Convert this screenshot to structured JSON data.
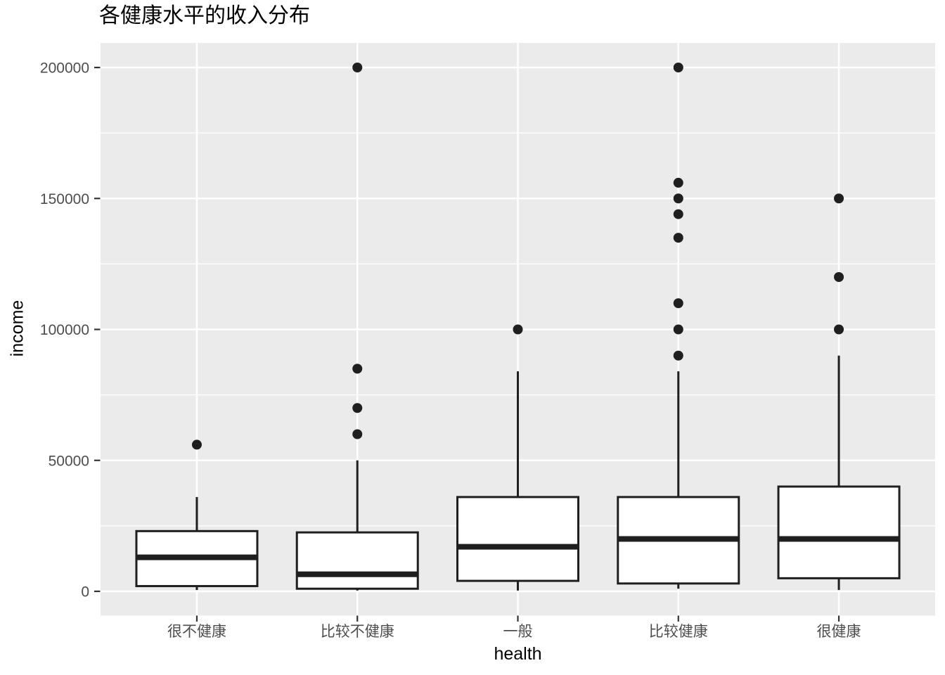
{
  "chart_data": {
    "type": "boxplot",
    "title": "各健康水平的收入分布",
    "xlabel": "health",
    "ylabel": "income",
    "categories": [
      "很不健康",
      "比较不健康",
      "一般",
      "比较健康",
      "很健康"
    ],
    "y_ticks": [
      0,
      50000,
      100000,
      150000,
      200000
    ],
    "y_ticks_minor": [
      25000,
      75000,
      125000,
      175000
    ],
    "ylim": [
      0,
      200000
    ],
    "grid": true,
    "legend": "none",
    "series": [
      {
        "category": "很不健康",
        "whisker_low": 500,
        "q1": 2000,
        "median": 13000,
        "q3": 23000,
        "whisker_high": 36000,
        "outliers": [
          56000
        ]
      },
      {
        "category": "比较不健康",
        "whisker_low": 300,
        "q1": 1000,
        "median": 6500,
        "q3": 22500,
        "whisker_high": 50000,
        "outliers": [
          60000,
          70000,
          85000,
          200000
        ]
      },
      {
        "category": "一般",
        "whisker_low": 300,
        "q1": 4000,
        "median": 17000,
        "q3": 36000,
        "whisker_high": 84000,
        "outliers": [
          100000
        ]
      },
      {
        "category": "比较健康",
        "whisker_low": 1000,
        "q1": 3000,
        "median": 20000,
        "q3": 36000,
        "whisker_high": 84000,
        "outliers": [
          90000,
          100000,
          110000,
          135000,
          144000,
          150000,
          156000,
          200000
        ]
      },
      {
        "category": "很健康",
        "whisker_low": 500,
        "q1": 5000,
        "median": 20000,
        "q3": 40000,
        "whisker_high": 90000,
        "outliers": [
          100000,
          120000,
          150000
        ]
      }
    ],
    "colors": {
      "panel_bg": "#EBEBEB",
      "grid": "#FFFFFF",
      "box_fill": "#FFFFFF",
      "stroke": "#1F1F1F",
      "tick_mark": "#333333",
      "tick_label": "#4D4D4D",
      "title_text": "#000000"
    }
  }
}
